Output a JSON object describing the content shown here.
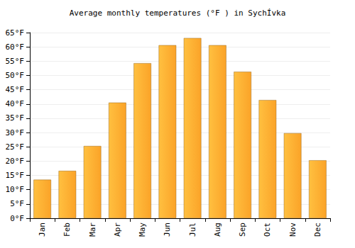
{
  "chart_data": {
    "type": "bar",
    "title": "Average monthly temperatures (°F ) in SychÍvka",
    "categories": [
      "Jan",
      "Feb",
      "Mar",
      "Apr",
      "May",
      "Jun",
      "Jul",
      "Aug",
      "Sep",
      "Oct",
      "Nov",
      "Dec"
    ],
    "values": [
      13.5,
      16.6,
      25.3,
      40.5,
      54.3,
      60.6,
      63.1,
      60.6,
      51.3,
      41.4,
      29.8,
      20.3
    ],
    "color": "#fba328",
    "ylim": [
      0,
      65
    ],
    "yticks": [
      {
        "value": 0,
        "label": "0°F"
      },
      {
        "value": 5,
        "label": "5°F"
      },
      {
        "value": 10,
        "label": "10°F"
      },
      {
        "value": 15,
        "label": "15°F"
      },
      {
        "value": 20,
        "label": "20°F"
      },
      {
        "value": 25,
        "label": "25°F"
      },
      {
        "value": 30,
        "label": "30°F"
      },
      {
        "value": 35,
        "label": "35°F"
      },
      {
        "value": 40,
        "label": "40°F"
      },
      {
        "value": 45,
        "label": "45°F"
      },
      {
        "value": 50,
        "label": "50°F"
      },
      {
        "value": 55,
        "label": "55°F"
      },
      {
        "value": 60,
        "label": "60°F"
      },
      {
        "value": 65,
        "label": "65°F"
      }
    ],
    "grid": true
  }
}
